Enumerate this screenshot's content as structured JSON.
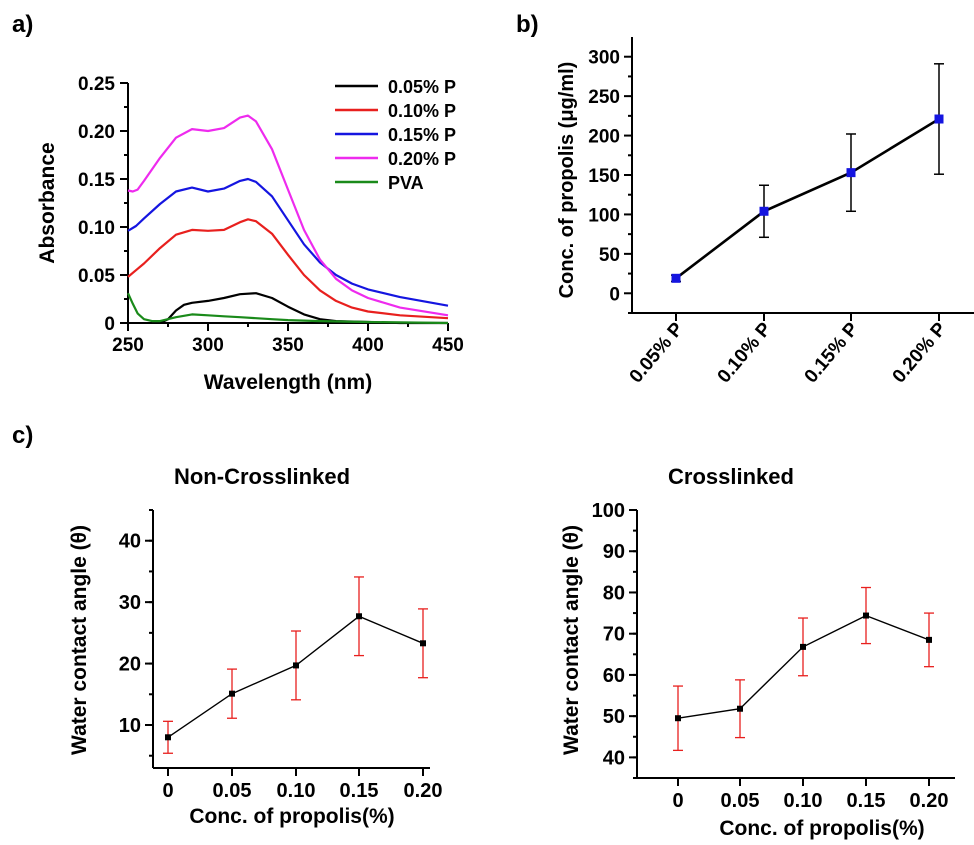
{
  "panels": {
    "a": "a)",
    "b": "b)",
    "c": "c)"
  },
  "chart_data": [
    {
      "id": "a",
      "type": "line",
      "xlabel": "Wavelength (nm)",
      "ylabel": "Absorbance",
      "xlim": [
        250,
        450
      ],
      "ylim": [
        0,
        0.25
      ],
      "xticks": [
        "250",
        "300",
        "350",
        "400",
        "450"
      ],
      "yticks": [
        "0",
        "0.05",
        "0.10",
        "0.15",
        "0.20",
        "0.25"
      ],
      "legend_position": "top-right",
      "grid": false,
      "series": [
        {
          "name": "0.05% P",
          "color": "#000000",
          "x": [
            270,
            275,
            280,
            285,
            290,
            300,
            310,
            320,
            330,
            340,
            350,
            360,
            370,
            380,
            400,
            420,
            450
          ],
          "y": [
            0.0,
            0.004,
            0.013,
            0.019,
            0.021,
            0.023,
            0.026,
            0.03,
            0.031,
            0.026,
            0.017,
            0.009,
            0.004,
            0.002,
            0.001,
            0.0,
            0.0
          ]
        },
        {
          "name": "0.10% P",
          "color": "#e8201e",
          "x": [
            250,
            255,
            260,
            270,
            280,
            290,
            300,
            310,
            320,
            325,
            330,
            340,
            350,
            360,
            370,
            380,
            390,
            400,
            420,
            450
          ],
          "y": [
            0.048,
            0.055,
            0.062,
            0.078,
            0.092,
            0.097,
            0.096,
            0.097,
            0.105,
            0.108,
            0.106,
            0.093,
            0.071,
            0.05,
            0.034,
            0.023,
            0.016,
            0.012,
            0.008,
            0.005
          ]
        },
        {
          "name": "0.15% P",
          "color": "#1515e0",
          "x": [
            250,
            255,
            260,
            270,
            280,
            290,
            300,
            310,
            320,
            325,
            330,
            340,
            350,
            360,
            370,
            380,
            390,
            400,
            420,
            450
          ],
          "y": [
            0.096,
            0.101,
            0.109,
            0.124,
            0.137,
            0.141,
            0.137,
            0.14,
            0.148,
            0.15,
            0.147,
            0.132,
            0.107,
            0.082,
            0.063,
            0.05,
            0.041,
            0.035,
            0.027,
            0.018
          ]
        },
        {
          "name": "0.20% P",
          "color": "#ee2bee",
          "x": [
            250,
            253,
            256,
            260,
            270,
            280,
            290,
            300,
            310,
            320,
            325,
            330,
            340,
            350,
            360,
            370,
            380,
            390,
            400,
            420,
            450
          ],
          "y": [
            0.138,
            0.137,
            0.139,
            0.148,
            0.172,
            0.193,
            0.202,
            0.2,
            0.203,
            0.214,
            0.216,
            0.21,
            0.181,
            0.139,
            0.097,
            0.066,
            0.046,
            0.034,
            0.026,
            0.016,
            0.008
          ]
        },
        {
          "name": "PVA",
          "color": "#1a8a1a",
          "x": [
            250,
            253,
            256,
            260,
            265,
            270,
            280,
            290,
            300,
            310,
            320,
            330,
            340,
            350,
            370,
            400,
            450
          ],
          "y": [
            0.031,
            0.02,
            0.01,
            0.004,
            0.002,
            0.002,
            0.006,
            0.009,
            0.008,
            0.007,
            0.006,
            0.005,
            0.004,
            0.003,
            0.002,
            0.001,
            0.0
          ]
        }
      ]
    },
    {
      "id": "b",
      "type": "line",
      "xlabel": "",
      "ylabel": "Conc. of propolis (μg/ml)",
      "categories": [
        "0.05% P",
        "0.10% P",
        "0.15% P",
        "0.20% P"
      ],
      "ylim": [
        -25,
        325
      ],
      "yticks": [
        "0",
        "50",
        "100",
        "150",
        "200",
        "250",
        "300"
      ],
      "grid": false,
      "series": [
        {
          "values": [
            19,
            104,
            153,
            221
          ],
          "errors": [
            4,
            33,
            49,
            70
          ],
          "line_color": "#000000",
          "marker_color": "#1515e0"
        }
      ]
    },
    {
      "id": "c-left",
      "type": "line",
      "title": "Non-Crosslinked",
      "xlabel": "Conc. of propolis(%)",
      "ylabel": "Water contact angle (θ)",
      "categories": [
        "0",
        "0.05",
        "0.10",
        "0.15",
        "0.20"
      ],
      "ylim": [
        3,
        45
      ],
      "yticks": [
        "10",
        "20",
        "30",
        "40"
      ],
      "grid": false,
      "series": [
        {
          "values": [
            8.0,
            15.1,
            19.7,
            27.7,
            23.3
          ],
          "errors": [
            2.6,
            4.0,
            5.6,
            6.4,
            5.6
          ],
          "line_color": "#000000",
          "marker_color": "#000000",
          "error_color": "#e8201e"
        }
      ]
    },
    {
      "id": "c-right",
      "type": "line",
      "title": "Crosslinked",
      "xlabel": "Conc. of propolis(%)",
      "ylabel": "Water contact angle (θ)",
      "categories": [
        "0",
        "0.05",
        "0.10",
        "0.15",
        "0.20"
      ],
      "ylim": [
        35,
        100
      ],
      "yticks": [
        "40",
        "50",
        "60",
        "70",
        "80",
        "90",
        "100"
      ],
      "grid": false,
      "series": [
        {
          "values": [
            49.5,
            51.8,
            66.8,
            74.4,
            68.5
          ],
          "errors": [
            7.8,
            7.0,
            7.0,
            6.8,
            6.5
          ],
          "line_color": "#000000",
          "marker_color": "#000000",
          "error_color": "#e8201e"
        }
      ]
    }
  ]
}
